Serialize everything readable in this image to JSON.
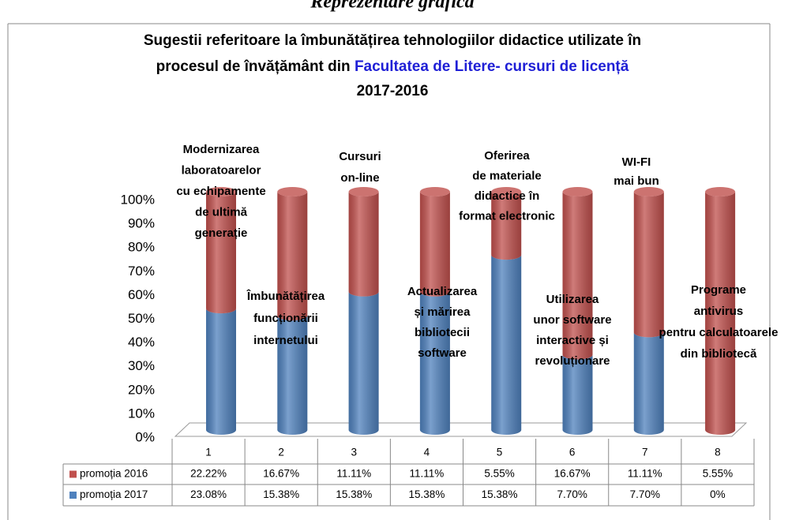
{
  "chart_data": {
    "type": "bar",
    "stacking": "percent",
    "header": "Reprezentare grafică",
    "title": [
      "Sugestii referitoare la îmbunătățirea tehnologiilor didactice utilizate în",
      "procesul de învățământ din ",
      "Facultatea de Litere- cursuri de licență",
      "2017-2016"
    ],
    "title_highlight_color": "#1f1fd6",
    "categories": [
      "1",
      "2",
      "3",
      "4",
      "5",
      "6",
      "7",
      "8"
    ],
    "annotations": [
      [
        "Modernizarea",
        "laboratoarelor",
        "cu echipamente",
        "de ultimă",
        "generație"
      ],
      [
        "Îmbunătățirea",
        "funcționării",
        "internetului"
      ],
      [
        "Cursuri",
        "on-line"
      ],
      [
        "Actualizarea",
        "și mărirea",
        "bibliotecii",
        "software"
      ],
      [
        "Oferirea",
        "de materiale",
        "didactice în",
        "format electronic"
      ],
      [
        "Utilizarea",
        "unor software",
        "interactive și",
        "revoluționare"
      ],
      [
        "WI-FI",
        "mai bun"
      ],
      [
        "Programe",
        "antivirus",
        "pentru calculatoarele",
        "din bibliotecă"
      ]
    ],
    "series": [
      {
        "name": "promoția 2016",
        "color": "#c0504d",
        "values": [
          22.22,
          16.67,
          11.11,
          11.11,
          5.55,
          16.67,
          11.11,
          5.55
        ],
        "value_labels": [
          "22.22%",
          "16.67%",
          "11.11%",
          "11.11%",
          "5.55%",
          "16.67%",
          "11.11%",
          "5.55%"
        ]
      },
      {
        "name": "promoția 2017",
        "color": "#4f81bd",
        "values": [
          23.08,
          15.38,
          15.38,
          15.38,
          15.38,
          7.7,
          7.7,
          0
        ],
        "value_labels": [
          "23.08%",
          "15.38%",
          "15.38%",
          "15.38%",
          "15.38%",
          "7.70%",
          "7.70%",
          "0%"
        ]
      }
    ],
    "ylim": [
      0,
      100
    ],
    "yticks": [
      {
        "value": 0,
        "label": "0%"
      },
      {
        "value": 10,
        "label": "10%"
      },
      {
        "value": 20,
        "label": "20%"
      },
      {
        "value": 30,
        "label": "30%"
      },
      {
        "value": 40,
        "label": "40%"
      },
      {
        "value": 50,
        "label": "50%"
      },
      {
        "value": 60,
        "label": "60%"
      },
      {
        "value": 70,
        "label": "70%"
      },
      {
        "value": 80,
        "label": "80%"
      },
      {
        "value": 90,
        "label": "90%"
      },
      {
        "value": 100,
        "label": "100%"
      }
    ],
    "grid": false
  }
}
